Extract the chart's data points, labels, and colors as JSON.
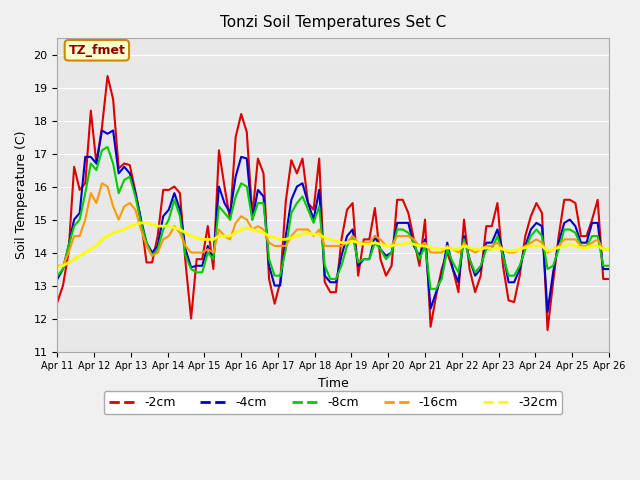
{
  "title": "Tonzi Soil Temperatures Set C",
  "xlabel": "Time",
  "ylabel": "Soil Temperature (C)",
  "annotation": "TZ_fmet",
  "ylim": [
    11.0,
    20.5
  ],
  "yticks": [
    11.0,
    12.0,
    13.0,
    14.0,
    15.0,
    16.0,
    17.0,
    18.0,
    19.0,
    20.0
  ],
  "x_labels": [
    "Apr 11",
    "Apr 12",
    "Apr 13",
    "Apr 14",
    "Apr 15",
    "Apr 16",
    "Apr 17",
    "Apr 18",
    "Apr 19",
    "Apr 20",
    "Apr 21",
    "Apr 22",
    "Apr 23",
    "Apr 24",
    "Apr 25",
    "Apr 26"
  ],
  "series": {
    "-2cm": {
      "color": "#dd0000",
      "linewidth": 1.5,
      "values": [
        12.5,
        13.0,
        14.0,
        16.6,
        15.9,
        16.1,
        18.3,
        16.7,
        17.8,
        19.35,
        18.65,
        16.55,
        16.7,
        16.65,
        15.85,
        15.0,
        13.7,
        13.7,
        14.5,
        15.9,
        15.9,
        16.0,
        15.8,
        13.7,
        12.0,
        13.8,
        13.8,
        14.8,
        13.5,
        17.1,
        16.0,
        15.0,
        17.5,
        18.2,
        17.65,
        15.1,
        16.85,
        16.4,
        13.2,
        12.45,
        13.1,
        15.55,
        16.8,
        16.4,
        16.85,
        15.5,
        15.3,
        16.85,
        13.1,
        12.8,
        12.8,
        14.4,
        15.3,
        15.5,
        13.3,
        14.4,
        14.4,
        15.35,
        13.8,
        13.3,
        13.6,
        15.6,
        15.6,
        15.2,
        14.4,
        13.6,
        15.0,
        11.75,
        12.7,
        13.5,
        14.0,
        13.5,
        12.8,
        15.0,
        13.5,
        12.8,
        13.3,
        14.8,
        14.8,
        15.5,
        13.6,
        12.55,
        12.5,
        13.3,
        14.5,
        15.1,
        15.5,
        15.2,
        11.65,
        13.1,
        14.5,
        15.6,
        15.6,
        15.5,
        14.5,
        14.5,
        15.0,
        15.6,
        13.2,
        13.2
      ]
    },
    "-4cm": {
      "color": "#0000cc",
      "linewidth": 1.5,
      "values": [
        13.2,
        13.5,
        14.2,
        15.0,
        15.2,
        16.9,
        16.9,
        16.7,
        17.7,
        17.6,
        17.7,
        16.4,
        16.6,
        16.4,
        15.8,
        15.0,
        14.3,
        14.0,
        14.2,
        15.1,
        15.3,
        15.8,
        15.3,
        14.1,
        13.55,
        13.6,
        13.6,
        14.2,
        13.8,
        16.0,
        15.5,
        15.2,
        16.3,
        16.9,
        16.85,
        15.0,
        15.9,
        15.7,
        13.6,
        13.0,
        13.0,
        14.5,
        15.6,
        16.0,
        16.1,
        15.5,
        15.0,
        15.9,
        13.3,
        13.1,
        13.1,
        13.9,
        14.5,
        14.7,
        13.6,
        13.8,
        13.8,
        14.5,
        14.1,
        13.9,
        14.0,
        14.9,
        14.9,
        14.9,
        14.2,
        13.9,
        14.4,
        12.3,
        12.8,
        13.3,
        14.3,
        13.5,
        13.1,
        14.5,
        13.8,
        13.3,
        13.5,
        14.3,
        14.3,
        14.7,
        14.0,
        13.1,
        13.1,
        13.5,
        14.2,
        14.7,
        14.9,
        14.8,
        12.2,
        13.4,
        14.3,
        14.9,
        15.0,
        14.8,
        14.3,
        14.3,
        14.9,
        14.9,
        13.5,
        13.5
      ]
    },
    "-8cm": {
      "color": "#00cc00",
      "linewidth": 1.5,
      "values": [
        13.3,
        13.5,
        14.2,
        14.8,
        15.0,
        15.8,
        16.7,
        16.5,
        17.1,
        17.2,
        16.7,
        15.8,
        16.2,
        16.3,
        15.7,
        14.9,
        14.3,
        13.9,
        14.1,
        14.7,
        15.0,
        15.6,
        15.1,
        13.9,
        13.5,
        13.4,
        13.4,
        14.0,
        13.8,
        15.4,
        15.2,
        15.0,
        15.7,
        16.1,
        16.0,
        15.0,
        15.5,
        15.5,
        13.8,
        13.3,
        13.3,
        14.1,
        15.2,
        15.5,
        15.7,
        15.3,
        14.9,
        15.4,
        13.6,
        13.2,
        13.2,
        13.6,
        14.2,
        14.5,
        13.7,
        13.8,
        13.8,
        14.3,
        14.1,
        13.8,
        14.0,
        14.7,
        14.7,
        14.6,
        14.3,
        13.8,
        14.2,
        12.9,
        12.9,
        13.2,
        14.1,
        13.7,
        13.4,
        14.4,
        13.8,
        13.4,
        13.6,
        14.1,
        14.1,
        14.5,
        13.9,
        13.3,
        13.3,
        13.6,
        14.1,
        14.5,
        14.7,
        14.5,
        13.5,
        13.6,
        14.1,
        14.7,
        14.7,
        14.6,
        14.2,
        14.2,
        14.5,
        14.5,
        13.6,
        13.6
      ]
    },
    "-16cm": {
      "color": "#ff9900",
      "linewidth": 1.5,
      "values": [
        13.6,
        13.6,
        14.0,
        14.5,
        14.5,
        15.0,
        15.8,
        15.5,
        16.1,
        16.0,
        15.4,
        15.0,
        15.4,
        15.5,
        15.3,
        14.7,
        14.2,
        13.9,
        14.0,
        14.4,
        14.5,
        14.8,
        14.6,
        14.2,
        14.0,
        14.0,
        14.0,
        14.1,
        14.0,
        14.7,
        14.5,
        14.4,
        14.9,
        15.1,
        15.0,
        14.7,
        14.8,
        14.7,
        14.3,
        14.2,
        14.2,
        14.2,
        14.5,
        14.7,
        14.7,
        14.7,
        14.5,
        14.7,
        14.2,
        14.2,
        14.2,
        14.2,
        14.3,
        14.5,
        14.3,
        14.3,
        14.3,
        14.5,
        14.4,
        14.2,
        14.2,
        14.5,
        14.5,
        14.5,
        14.4,
        14.2,
        14.3,
        14.0,
        14.0,
        14.0,
        14.2,
        14.1,
        14.0,
        14.3,
        14.1,
        14.0,
        14.1,
        14.2,
        14.2,
        14.3,
        14.1,
        14.0,
        14.0,
        14.1,
        14.2,
        14.3,
        14.4,
        14.3,
        14.0,
        14.1,
        14.2,
        14.4,
        14.4,
        14.4,
        14.2,
        14.2,
        14.3,
        14.4,
        14.1,
        14.1
      ]
    },
    "-32cm": {
      "color": "#ffff00",
      "linewidth": 2.0,
      "values": [
        13.55,
        13.6,
        13.7,
        13.8,
        13.9,
        14.0,
        14.1,
        14.2,
        14.4,
        14.5,
        14.6,
        14.65,
        14.7,
        14.8,
        14.85,
        14.9,
        14.9,
        14.85,
        14.8,
        14.8,
        14.8,
        14.75,
        14.7,
        14.6,
        14.5,
        14.45,
        14.4,
        14.4,
        14.4,
        14.5,
        14.5,
        14.5,
        14.6,
        14.7,
        14.75,
        14.7,
        14.65,
        14.6,
        14.5,
        14.45,
        14.4,
        14.4,
        14.45,
        14.5,
        14.55,
        14.6,
        14.55,
        14.55,
        14.45,
        14.4,
        14.35,
        14.3,
        14.3,
        14.35,
        14.3,
        14.25,
        14.25,
        14.3,
        14.25,
        14.2,
        14.2,
        14.25,
        14.25,
        14.3,
        14.25,
        14.2,
        14.2,
        14.15,
        14.1,
        14.1,
        14.15,
        14.1,
        14.1,
        14.2,
        14.15,
        14.1,
        14.1,
        14.15,
        14.1,
        14.15,
        14.1,
        14.05,
        14.05,
        14.1,
        14.15,
        14.2,
        14.2,
        14.2,
        14.05,
        14.1,
        14.15,
        14.2,
        14.25,
        14.2,
        14.15,
        14.15,
        14.2,
        14.2,
        14.1,
        14.1
      ]
    }
  },
  "n_points": 100,
  "legend_labels": [
    "-2cm",
    "-4cm",
    "-8cm",
    "-16cm",
    "-32cm"
  ],
  "legend_colors": [
    "#dd0000",
    "#0000cc",
    "#00cc00",
    "#ff9900",
    "#ffff00"
  ],
  "plot_bg_color": "#e8e8e8",
  "annotation_bg": "#ffffcc",
  "annotation_border": "#cc8800"
}
